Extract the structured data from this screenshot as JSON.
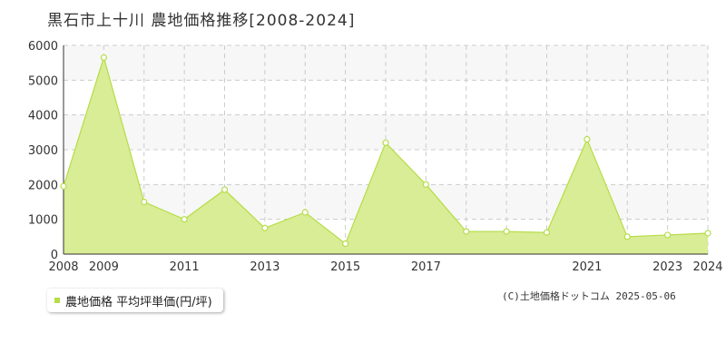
{
  "header": {
    "title": "黒石市上十川 農地価格推移[2008-2024]"
  },
  "legend": {
    "label": "農地価格 平均坪単価(円/坪)"
  },
  "credit": {
    "text": "(C)土地価格ドットコム 2025-05-06"
  },
  "colors": {
    "fill": "#d9ec96",
    "line": "#b5dd48",
    "marker_stroke": "#b5dd48",
    "marker_fill": "#ffffff",
    "grid": "#cccccc",
    "band": "#f7f7f7",
    "axis": "#333333",
    "legend_swatch": "#b5dd48"
  },
  "chart_data": {
    "type": "area",
    "x": [
      2008,
      2009,
      2010,
      2011,
      2012,
      2013,
      2014,
      2015,
      2016,
      2017,
      2018,
      2019,
      2020,
      2021,
      2022,
      2023,
      2024
    ],
    "series": [
      {
        "name": "農地価格 平均坪単価(円/坪)",
        "values": [
          1950,
          5650,
          1500,
          1000,
          1850,
          750,
          1200,
          300,
          3200,
          2000,
          650,
          650,
          620,
          3300,
          500,
          550,
          600
        ]
      }
    ],
    "x_tick_labels": [
      "2008",
      "2009",
      "2011",
      "2013",
      "2015",
      "2017",
      "2021",
      "2023",
      "2024"
    ],
    "y_ticks": [
      0,
      1000,
      2000,
      3000,
      4000,
      5000,
      6000
    ],
    "xlim": [
      2008,
      2024
    ],
    "ylim": [
      0,
      6000
    ],
    "grid": true,
    "legend_position": "bottom-left"
  }
}
